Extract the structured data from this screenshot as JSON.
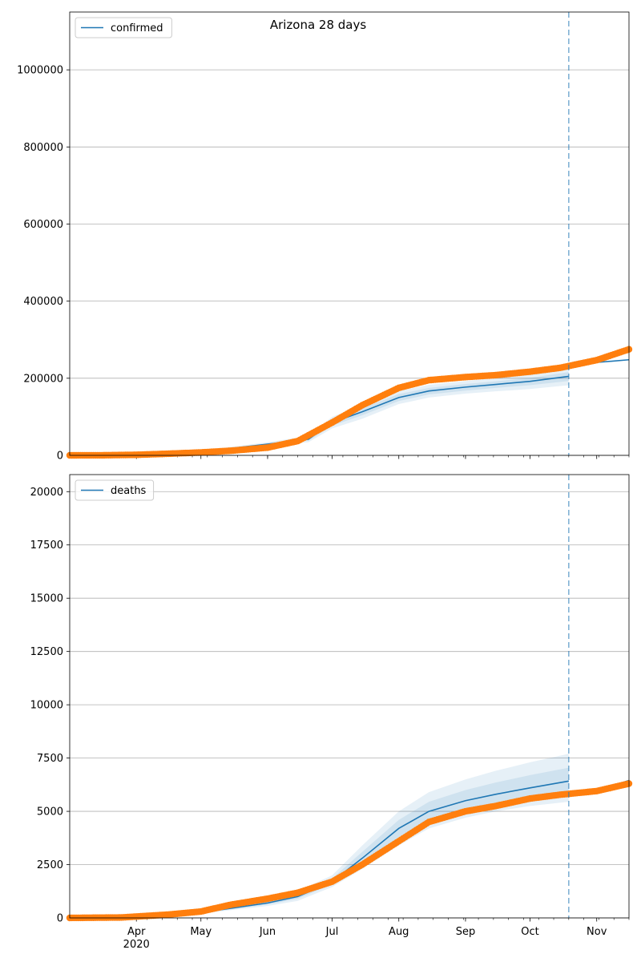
{
  "colors": {
    "model": "#1f77b4",
    "observed": "#ff7f0e",
    "grid": "#b0b0b0",
    "vline": "#1f77b4"
  },
  "x_axis": {
    "start": "2020-03-01",
    "end": "2020-11-16",
    "ticks": [
      {
        "date": "2020-04-01",
        "label": "Apr"
      },
      {
        "date": "2020-05-01",
        "label": "May"
      },
      {
        "date": "2020-06-01",
        "label": "Jun"
      },
      {
        "date": "2020-07-01",
        "label": "Jul"
      },
      {
        "date": "2020-08-01",
        "label": "Aug"
      },
      {
        "date": "2020-09-01",
        "label": "Sep"
      },
      {
        "date": "2020-10-01",
        "label": "Oct"
      },
      {
        "date": "2020-11-01",
        "label": "Nov"
      }
    ],
    "year_label": "2020",
    "forecast_start": "2020-10-19"
  },
  "chart_data": [
    {
      "type": "line",
      "title": "Arizona 28 days",
      "xlabel": "",
      "ylabel": "",
      "ylim": [
        0,
        1150000
      ],
      "yticks": [
        0,
        200000,
        400000,
        600000,
        800000,
        1000000
      ],
      "grid": "horizontal",
      "legend": "top-left",
      "series": [
        {
          "name": "confirmed",
          "kind": "model",
          "x": [
            "2020-03-01",
            "2020-04-01",
            "2020-05-01",
            "2020-06-01",
            "2020-06-20",
            "2020-07-01",
            "2020-07-15",
            "2020-08-01",
            "2020-08-15",
            "2020-09-01",
            "2020-09-15",
            "2020-10-01",
            "2020-10-19",
            "2020-10-20",
            "2020-11-01",
            "2020-11-16"
          ],
          "y": [
            500,
            2000,
            9000,
            29000,
            42000,
            85000,
            113000,
            150000,
            167000,
            177000,
            184000,
            192000,
            205000,
            234000,
            241000,
            248000
          ],
          "bands": [
            {
              "lower": [
                300,
                1600,
                7000,
                24000,
                34000,
                70000,
                95000,
                133000,
                150000,
                160000,
                166000,
                172000,
                182000
              ],
              "upper": [
                700,
                2500,
                12000,
                34000,
                50000,
                100000,
                130000,
                167000,
                183000,
                193000,
                201000,
                211000,
                226000
              ]
            },
            {
              "lower": [
                400,
                1800,
                8000,
                26500,
                38000,
                77000,
                104000,
                141000,
                158000,
                168000,
                175000,
                182000,
                193000
              ],
              "upper": [
                600,
                2300,
                10500,
                31500,
                46000,
                93000,
                122000,
                159000,
                175000,
                185000,
                192000,
                201000,
                216000
              ]
            }
          ]
        },
        {
          "name": "",
          "kind": "observed",
          "x": [
            "2020-03-01",
            "2020-03-15",
            "2020-04-01",
            "2020-04-15",
            "2020-05-01",
            "2020-05-15",
            "2020-06-01",
            "2020-06-15",
            "2020-07-01",
            "2020-07-15",
            "2020-08-01",
            "2020-08-15",
            "2020-09-01",
            "2020-09-15",
            "2020-10-01",
            "2020-10-15",
            "2020-11-01",
            "2020-11-16"
          ],
          "y": [
            0,
            100,
            1400,
            4000,
            7500,
            12000,
            20000,
            37000,
            85000,
            130000,
            175000,
            195000,
            203000,
            208000,
            217000,
            227000,
            247000,
            275000
          ]
        }
      ]
    },
    {
      "type": "line",
      "title": "",
      "xlabel": "",
      "ylabel": "",
      "ylim": [
        0,
        20800
      ],
      "yticks": [
        0,
        2500,
        5000,
        7500,
        10000,
        12500,
        15000,
        17500,
        20000
      ],
      "grid": "horizontal",
      "legend": "top-left",
      "series": [
        {
          "name": "deaths",
          "kind": "model",
          "x": [
            "2020-03-01",
            "2020-04-01",
            "2020-05-01",
            "2020-06-01",
            "2020-06-15",
            "2020-07-01",
            "2020-07-15",
            "2020-08-01",
            "2020-08-15",
            "2020-09-01",
            "2020-09-15",
            "2020-10-01",
            "2020-10-19",
            "2020-10-20",
            "2020-11-01",
            "2020-11-16"
          ],
          "y": [
            0,
            40,
            250,
            700,
            1000,
            1700,
            2800,
            4200,
            5000,
            5500,
            5800,
            6100,
            6420,
            5810,
            5960,
            6450
          ],
          "bands": [
            {
              "lower": [
                0,
                30,
                200,
                560,
                800,
                1450,
                2300,
                3400,
                4200,
                4700,
                5000,
                5250,
                5450
              ],
              "upper": [
                0,
                50,
                300,
                840,
                1250,
                2000,
                3400,
                5000,
                5900,
                6500,
                6900,
                7300,
                7700
              ]
            },
            {
              "lower": [
                0,
                35,
                225,
                630,
                900,
                1580,
                2550,
                3800,
                4600,
                5100,
                5400,
                5680,
                5930
              ],
              "upper": [
                0,
                45,
                275,
                770,
                1120,
                1850,
                3100,
                4600,
                5450,
                6000,
                6350,
                6700,
                7050
              ]
            }
          ]
        },
        {
          "name": "",
          "kind": "observed",
          "x": [
            "2020-03-01",
            "2020-03-25",
            "2020-04-15",
            "2020-05-01",
            "2020-05-15",
            "2020-06-01",
            "2020-06-15",
            "2020-07-01",
            "2020-07-15",
            "2020-08-01",
            "2020-08-15",
            "2020-09-01",
            "2020-09-15",
            "2020-10-01",
            "2020-10-15",
            "2020-11-01",
            "2020-11-16"
          ],
          "y": [
            0,
            20,
            150,
            300,
            620,
            900,
            1180,
            1700,
            2500,
            3600,
            4500,
            5000,
            5250,
            5600,
            5780,
            5950,
            6300
          ]
        }
      ]
    }
  ]
}
